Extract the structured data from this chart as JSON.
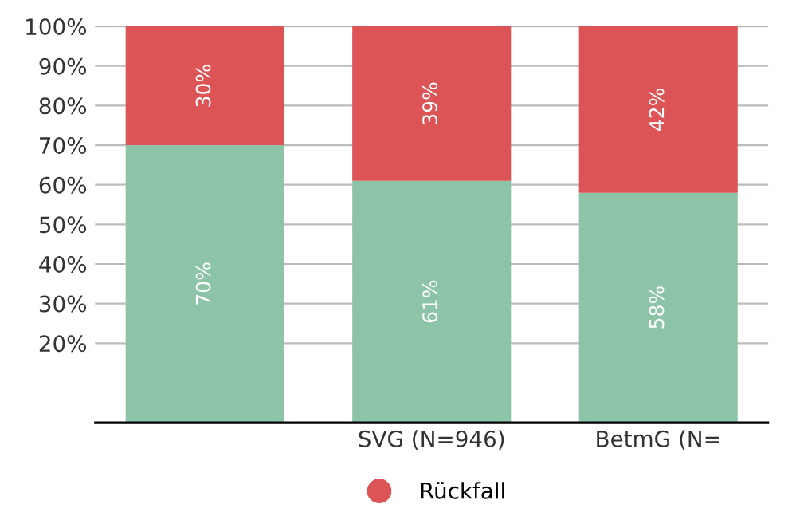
{
  "chart_data": {
    "type": "bar",
    "stacked": true,
    "categories": [
      null,
      "SVG (N=946)",
      "BetmG (N="
    ],
    "series": [
      {
        "color": "#8dc4a8",
        "values": [
          70,
          61,
          58
        ],
        "value_labels": [
          "70%",
          "61%",
          "58%"
        ]
      },
      {
        "name": "Rückfall",
        "color": "#dc5455",
        "values": [
          30,
          39,
          42
        ],
        "value_labels": [
          "30%",
          "39%",
          "42%"
        ]
      }
    ],
    "ylim": [
      0,
      100
    ],
    "yticks": [
      {
        "value": 20,
        "label": "20%"
      },
      {
        "value": 30,
        "label": "30%"
      },
      {
        "value": 40,
        "label": "40%"
      },
      {
        "value": 50,
        "label": "50%"
      },
      {
        "value": 60,
        "label": "60%"
      },
      {
        "value": 70,
        "label": "70%"
      },
      {
        "value": 80,
        "label": "80%"
      },
      {
        "value": 90,
        "label": "90%"
      },
      {
        "value": 100,
        "label": "100%"
      }
    ],
    "grid": "y",
    "legend": "bottom"
  }
}
